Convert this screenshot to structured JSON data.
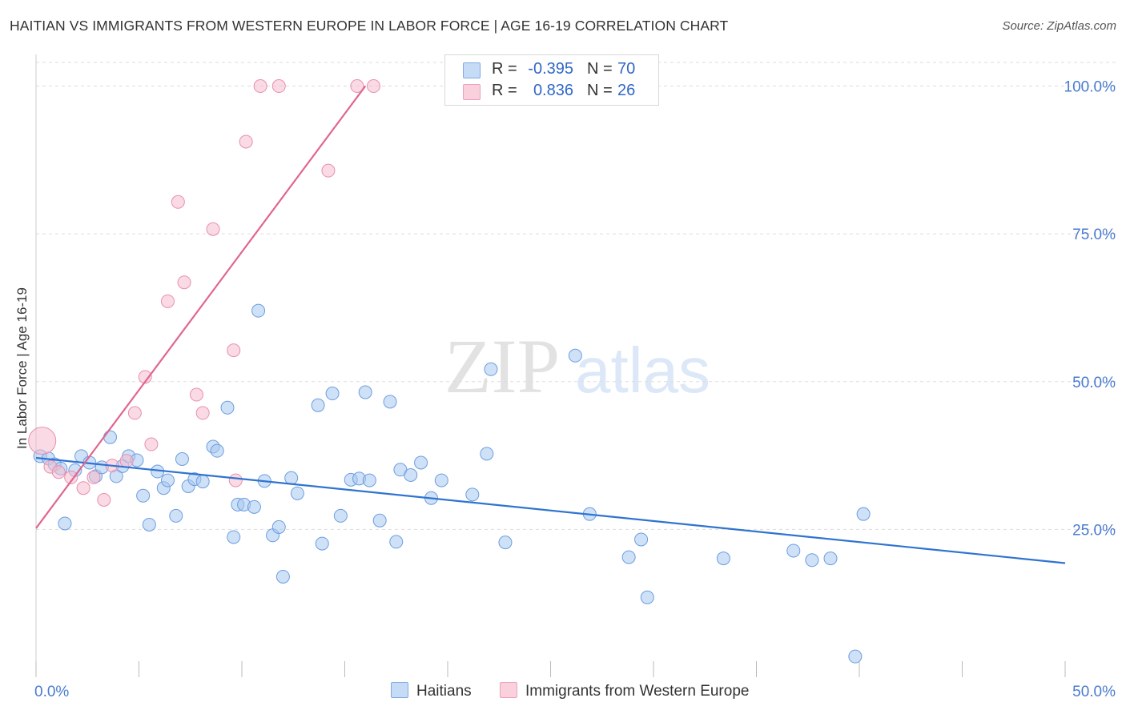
{
  "chart_data": {
    "type": "scatter",
    "title": "HAITIAN VS IMMIGRANTS FROM WESTERN EUROPE IN LABOR FORCE | AGE 16-19 CORRELATION CHART",
    "source": "Source: ZipAtlas.com",
    "ylabel": "In Labor Force | Age 16-19",
    "xlabel": "",
    "xlim": [
      0,
      50
    ],
    "ylim": [
      0,
      104
    ],
    "x_tick_labels": [
      "0.0%",
      "50.0%"
    ],
    "y_ticks": [
      25,
      50,
      75,
      100
    ],
    "y_tick_labels": [
      "25.0%",
      "50.0%",
      "75.0%",
      "100.0%"
    ],
    "grid": true,
    "watermark": {
      "part1": "ZIP",
      "part2": "atlas"
    },
    "legend": {
      "rows": [
        {
          "r_label": "R =",
          "r_value": "-0.395",
          "n_label": "N =",
          "n_value": "70",
          "color": "#a8c8f0"
        },
        {
          "r_label": "R =",
          "r_value": "0.836",
          "n_label": "N =",
          "n_value": "26",
          "color": "#f6bccd"
        }
      ]
    },
    "series": [
      {
        "name": "Haitians",
        "color": "#a8c8f0",
        "stroke": "#6c9de0",
        "trend": {
          "x": [
            0,
            50
          ],
          "y": [
            37.1,
            19.3
          ],
          "color": "#2f74d0"
        },
        "points": [
          [
            0.2,
            37.4
          ],
          [
            0.6,
            37.0
          ],
          [
            0.9,
            36.0
          ],
          [
            1.2,
            35.3
          ],
          [
            1.4,
            26.0
          ],
          [
            1.9,
            35.0
          ],
          [
            2.2,
            37.4
          ],
          [
            2.6,
            36.3
          ],
          [
            2.9,
            34.0
          ],
          [
            3.2,
            35.5
          ],
          [
            3.6,
            40.6
          ],
          [
            3.9,
            34.0
          ],
          [
            4.2,
            35.7
          ],
          [
            4.5,
            37.4
          ],
          [
            4.9,
            36.7
          ],
          [
            5.2,
            30.7
          ],
          [
            5.5,
            25.8
          ],
          [
            5.9,
            34.8
          ],
          [
            6.2,
            32.0
          ],
          [
            6.4,
            33.3
          ],
          [
            6.8,
            27.3
          ],
          [
            7.1,
            36.9
          ],
          [
            7.4,
            32.3
          ],
          [
            7.7,
            33.5
          ],
          [
            8.1,
            33.1
          ],
          [
            8.6,
            39.0
          ],
          [
            8.8,
            38.3
          ],
          [
            9.3,
            45.6
          ],
          [
            9.6,
            23.7
          ],
          [
            9.8,
            29.2
          ],
          [
            10.1,
            29.2
          ],
          [
            10.6,
            28.8
          ],
          [
            10.8,
            62.0
          ],
          [
            11.1,
            33.2
          ],
          [
            11.5,
            24.0
          ],
          [
            11.8,
            25.4
          ],
          [
            12.0,
            17.0
          ],
          [
            12.4,
            33.7
          ],
          [
            12.7,
            31.1
          ],
          [
            13.7,
            46.0
          ],
          [
            13.9,
            22.6
          ],
          [
            14.4,
            48.0
          ],
          [
            14.8,
            27.3
          ],
          [
            15.3,
            33.4
          ],
          [
            15.7,
            33.6
          ],
          [
            16.0,
            48.2
          ],
          [
            16.2,
            33.3
          ],
          [
            16.7,
            26.5
          ],
          [
            17.2,
            46.6
          ],
          [
            17.5,
            22.9
          ],
          [
            17.7,
            35.1
          ],
          [
            18.2,
            34.2
          ],
          [
            18.7,
            36.3
          ],
          [
            19.2,
            30.3
          ],
          [
            19.7,
            33.3
          ],
          [
            21.2,
            30.9
          ],
          [
            21.9,
            37.8
          ],
          [
            22.1,
            52.1
          ],
          [
            22.8,
            22.8
          ],
          [
            26.2,
            54.4
          ],
          [
            26.9,
            27.6
          ],
          [
            28.8,
            20.3
          ],
          [
            29.4,
            23.3
          ],
          [
            29.7,
            13.5
          ],
          [
            33.4,
            20.1
          ],
          [
            36.8,
            21.4
          ],
          [
            37.7,
            19.8
          ],
          [
            38.6,
            20.1
          ],
          [
            40.2,
            27.6
          ],
          [
            39.8,
            3.5
          ]
        ]
      },
      {
        "name": "Immigrants from Western Europe",
        "color": "#f6bccd",
        "stroke": "#e890ac",
        "trend": {
          "x": [
            0,
            16
          ],
          "y": [
            25.2,
            100.0
          ],
          "color": "#e0668f"
        },
        "points": [
          [
            0.3,
            40.0
          ],
          [
            0.7,
            35.6
          ],
          [
            1.1,
            34.7
          ],
          [
            1.7,
            33.8
          ],
          [
            2.3,
            32.0
          ],
          [
            2.8,
            33.8
          ],
          [
            3.3,
            30.0
          ],
          [
            3.7,
            35.8
          ],
          [
            4.4,
            36.6
          ],
          [
            4.8,
            44.7
          ],
          [
            5.3,
            50.8
          ],
          [
            5.6,
            39.4
          ],
          [
            6.4,
            63.6
          ],
          [
            6.9,
            80.4
          ],
          [
            7.2,
            66.8
          ],
          [
            7.8,
            47.8
          ],
          [
            8.1,
            44.7
          ],
          [
            8.6,
            75.8
          ],
          [
            9.6,
            55.3
          ],
          [
            9.7,
            33.3
          ],
          [
            10.2,
            90.6
          ],
          [
            10.9,
            100.0
          ],
          [
            11.8,
            100.0
          ],
          [
            14.2,
            85.7
          ],
          [
            15.6,
            100.0
          ],
          [
            16.4,
            100.0
          ]
        ]
      }
    ]
  }
}
